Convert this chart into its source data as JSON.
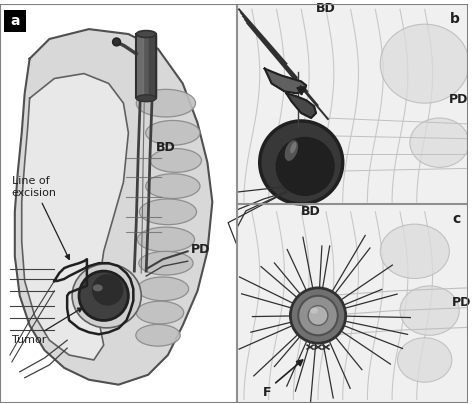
{
  "bg_color": "#ffffff",
  "panel_a_bg": "#ffffff",
  "panel_bc_bg": "#e8e8e8",
  "body_fill": "#d0d0d0",
  "body_edge": "#404040",
  "tube_fill": "#686868",
  "tube_edge": "#303030",
  "fold_fill": "#b8b8b8",
  "fold_edge": "#888888",
  "tumor_fill_outer": "#505050",
  "tumor_fill_inner": "#282828",
  "tissue_line": "#a0a0a0",
  "dark_line": "#202020",
  "panel_a_label": "a",
  "panel_b_label": "b",
  "panel_c_label": "c",
  "label_bd_a": "BD",
  "label_pd_a": "PD",
  "label_bd_b": "BD",
  "label_pd_b": "PD",
  "label_bd_c": "BD",
  "label_pd_c": "PD",
  "label_tumor": "Tumor",
  "label_line_excision": "Line of\nexcision",
  "label_f": "F",
  "fontsize_label": 9,
  "fontsize_panel": 10
}
